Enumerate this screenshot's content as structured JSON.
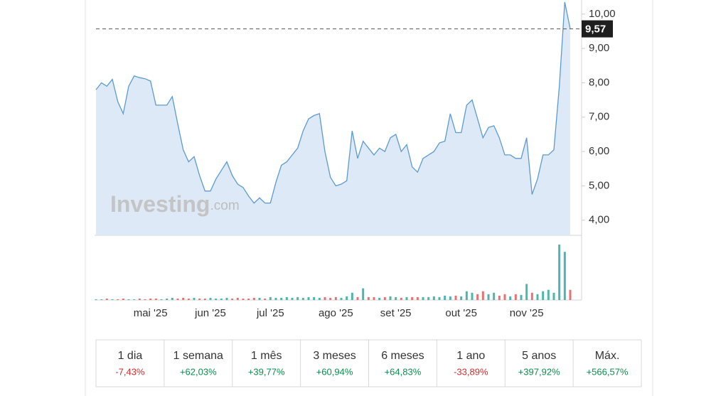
{
  "chart_data": {
    "type": "area",
    "categories": [
      null,
      null,
      null,
      null,
      null,
      null,
      null,
      null,
      null,
      null,
      "mai '25",
      null,
      null,
      null,
      null,
      null,
      null,
      null,
      null,
      null,
      null,
      "jun '25",
      null,
      null,
      null,
      null,
      null,
      null,
      null,
      null,
      null,
      null,
      "jul '25",
      null,
      null,
      null,
      null,
      null,
      null,
      null,
      null,
      null,
      null,
      null,
      "ago '25",
      null,
      null,
      null,
      null,
      null,
      null,
      null,
      null,
      null,
      null,
      "set '25",
      null,
      null,
      null,
      null,
      null,
      null,
      null,
      null,
      null,
      null,
      null,
      "out '25",
      null,
      null,
      null,
      null,
      null,
      null,
      null,
      null,
      null,
      null,
      null,
      "nov '25",
      null,
      null,
      null,
      null,
      null,
      null,
      null,
      null
    ],
    "values": [
      7.8,
      8.0,
      7.9,
      8.1,
      7.45,
      7.1,
      7.9,
      8.2,
      8.15,
      8.12,
      8.05,
      7.35,
      7.35,
      7.35,
      7.6,
      6.8,
      6.05,
      5.7,
      5.85,
      5.3,
      4.85,
      4.85,
      5.2,
      5.45,
      5.7,
      5.3,
      5.05,
      4.95,
      4.7,
      4.5,
      4.65,
      4.5,
      4.5,
      5.1,
      5.6,
      5.7,
      5.9,
      6.1,
      6.6,
      6.95,
      7.05,
      7.1,
      6.0,
      5.25,
      5.0,
      5.05,
      5.15,
      6.6,
      5.8,
      6.3,
      6.1,
      5.9,
      6.1,
      6.0,
      6.4,
      6.5,
      6.0,
      6.2,
      5.55,
      5.4,
      5.8,
      5.9,
      6.0,
      6.25,
      6.3,
      7.1,
      6.55,
      6.55,
      7.35,
      7.5,
      6.95,
      6.4,
      6.7,
      6.75,
      6.4,
      5.9,
      5.9,
      5.8,
      5.8,
      6.4,
      4.75,
      5.2,
      5.9,
      5.9,
      6.05,
      7.9,
      10.35,
      9.57
    ],
    "last_label": "9,57",
    "color": "#5b9bd1",
    "fill": "#dde9f7",
    "ylim": [
      3.56,
      10.41
    ],
    "yticks": [
      {
        "value": 4,
        "label": "4,00"
      },
      {
        "value": 5,
        "label": "5,00"
      },
      {
        "value": 6,
        "label": "6,00"
      },
      {
        "value": 7,
        "label": "7,00"
      },
      {
        "value": 8,
        "label": "8,00"
      },
      {
        "value": 9,
        "label": "9,00"
      },
      {
        "value": 10,
        "label": "10,00"
      }
    ],
    "volume": [
      1,
      1,
      2,
      1,
      1,
      2,
      1,
      1,
      2,
      1,
      2,
      2,
      1,
      2,
      3,
      2,
      3,
      2,
      3,
      2,
      2,
      3,
      2,
      2,
      3,
      2,
      3,
      2,
      2,
      3,
      3,
      2,
      4,
      3,
      3,
      4,
      3,
      4,
      3,
      4,
      4,
      3,
      4,
      3,
      4,
      3,
      5,
      10,
      4,
      16,
      4,
      4,
      3,
      4,
      5,
      4,
      3,
      4,
      4,
      4,
      4,
      4,
      5,
      4,
      6,
      5,
      6,
      5,
      12,
      10,
      8,
      12,
      8,
      10,
      6,
      8,
      5,
      8,
      7,
      22,
      10,
      8,
      12,
      14,
      10,
      76,
      66,
      14
    ],
    "up_color": "#4db6ac",
    "down_color": "#e57373"
  },
  "watermark": {
    "brand": "Investing",
    "suffix": ".com"
  },
  "periods": [
    {
      "label": "1 dia",
      "change": "-7,43%"
    },
    {
      "label": "1 semana",
      "change": "+62,03%"
    },
    {
      "label": "1 mês",
      "change": "+39,77%"
    },
    {
      "label": "3 meses",
      "change": "+60,94%"
    },
    {
      "label": "6 meses",
      "change": "+64,83%"
    },
    {
      "label": "1 ano",
      "change": "-33,89%"
    },
    {
      "label": "5 anos",
      "change": "+397,92%"
    },
    {
      "label": "Máx.",
      "change": "+566,57%"
    }
  ]
}
